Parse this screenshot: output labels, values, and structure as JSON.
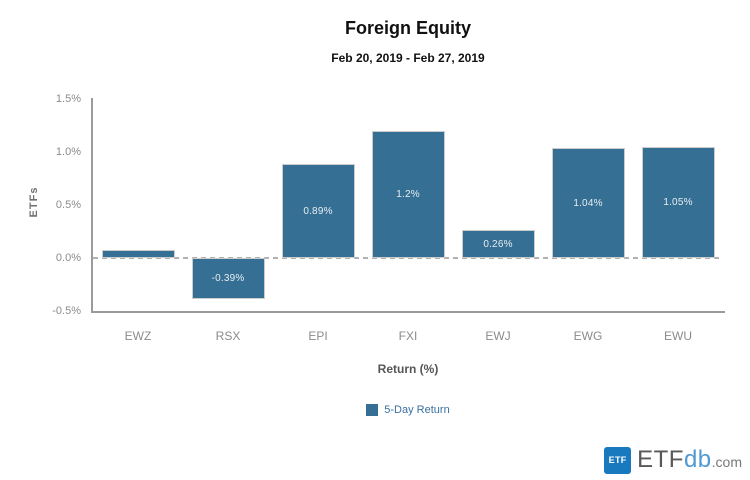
{
  "header": {
    "title": "Foreign Equity",
    "subtitle": "Feb 20, 2019 - Feb 27, 2019"
  },
  "chart_data": {
    "type": "bar",
    "title": "Foreign Equity",
    "subtitle": "Feb 20, 2019 - Feb 27, 2019",
    "categories": [
      "EWZ",
      "RSX",
      "EPI",
      "FXI",
      "EWJ",
      "EWG",
      "EWU"
    ],
    "series": [
      {
        "name": "5-Day Return",
        "values": [
          0.08,
          -0.39,
          0.89,
          1.2,
          0.26,
          1.04,
          1.05
        ],
        "labels": [
          "",
          "-0.39%",
          "0.89%",
          "1.2%",
          "0.26%",
          "1.04%",
          "1.05%"
        ]
      }
    ],
    "xlabel": "Return (%)",
    "ylabel": "ETFs",
    "ylim": [
      -0.5,
      1.5
    ],
    "yticks": [
      {
        "value": 1.5,
        "label": "1.5%"
      },
      {
        "value": 1.0,
        "label": "1.0%"
      },
      {
        "value": 0.5,
        "label": "0.5%"
      },
      {
        "value": 0.0,
        "label": "0.0%"
      },
      {
        "value": -0.5,
        "label": "-0.5%"
      }
    ],
    "grid": false,
    "zero_line_style": "dashed",
    "legend_position": "bottom",
    "bar_color": "#366f94",
    "bar_border_color": "#cccccc",
    "legend_text_color": "#3a6fa0",
    "axis_line_color": "#9b9b9b",
    "tick_label_color": "#8b8b8b"
  },
  "branding": {
    "badge_label": "ETF",
    "wordmark_main": "ETF",
    "wordmark_accent": "db",
    "wordmark_suffix": ".com",
    "badge_color": "#1879bf",
    "accent_color": "#4f9ad2"
  }
}
